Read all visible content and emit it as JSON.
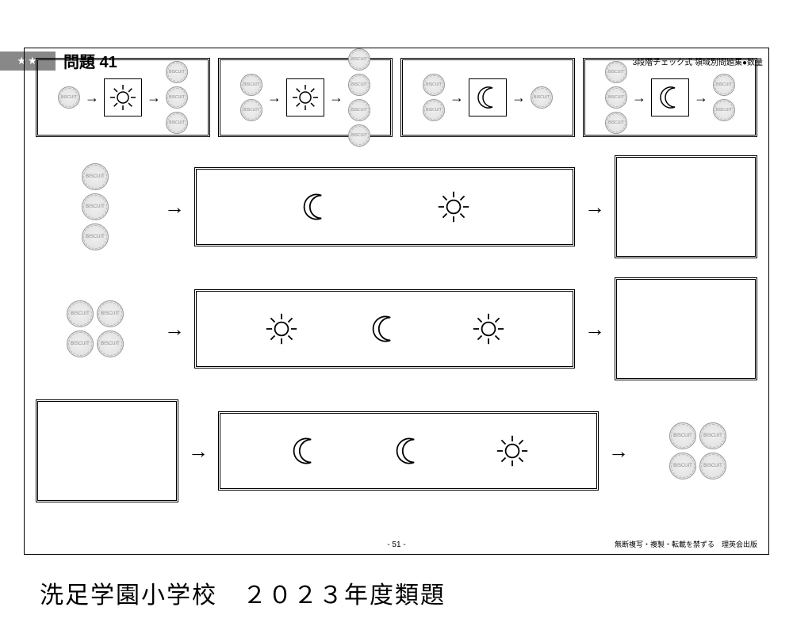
{
  "header": {
    "difficulty": "★★",
    "title": "問題 41",
    "subtitle": "3段階チェック式 領域別問題集●数量"
  },
  "icons": {
    "arrow": "→",
    "biscuit_label": "BISCUIT"
  },
  "examples": [
    {
      "in": 1,
      "op": "sun",
      "out": 3
    },
    {
      "in": 2,
      "op": "sun",
      "out": 4
    },
    {
      "in": 2,
      "op": "moon",
      "out": 1
    },
    {
      "in": 3,
      "op": "moon",
      "out": 2
    }
  ],
  "problems": [
    {
      "in": 3,
      "in_layout": "col",
      "ops": [
        "moon",
        "sun"
      ],
      "answer": "box"
    },
    {
      "in": 4,
      "in_layout": "grid2",
      "ops": [
        "sun",
        "moon",
        "sun"
      ],
      "answer": "box"
    },
    {
      "in": "box",
      "ops": [
        "moon",
        "moon",
        "sun"
      ],
      "out": 4,
      "out_layout": "grid2"
    }
  ],
  "footer": {
    "page": "- 51 -",
    "copyright": "無断複写・複製・転載を禁ずる　理英会出版",
    "caption": "洗足学園小学校　２０２３年度類題"
  },
  "colors": {
    "ink": "#000000",
    "biscuit_fill": "#e8e8e8"
  }
}
